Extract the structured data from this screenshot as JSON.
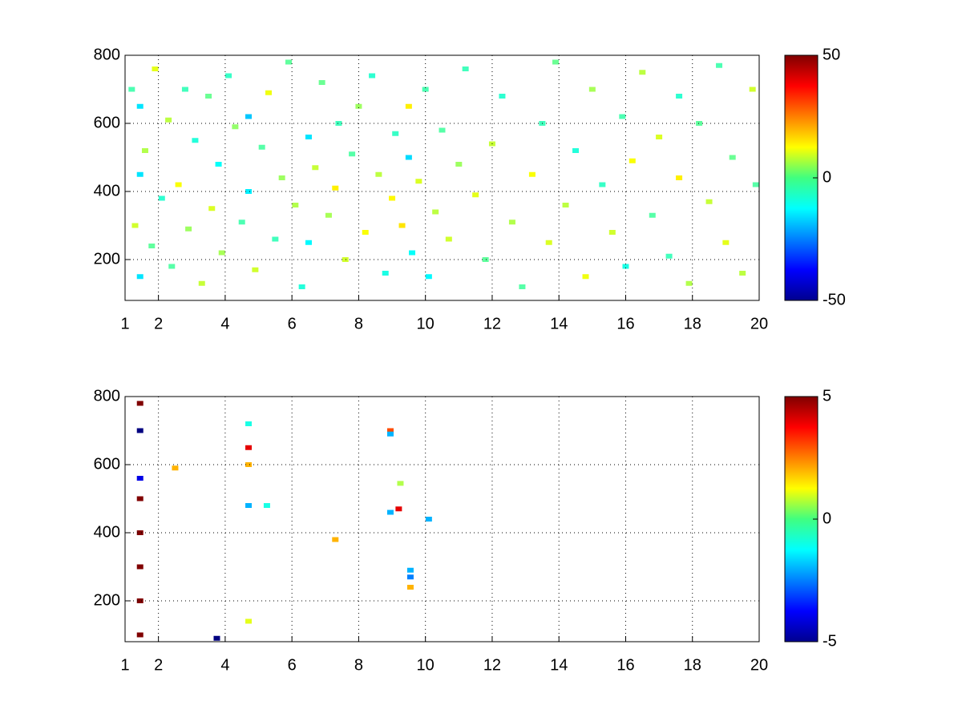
{
  "chart_data": [
    {
      "type": "heatmap",
      "colormap": "jet",
      "grid": true,
      "xlim": [
        1,
        20
      ],
      "xticks": [
        1,
        2,
        4,
        6,
        8,
        10,
        12,
        14,
        16,
        18,
        20
      ],
      "ylim": [
        80,
        800
      ],
      "yticks": [
        200,
        400,
        600,
        800
      ],
      "clim": [
        -50,
        50
      ],
      "cticks": [
        -50,
        0,
        50
      ],
      "x": [
        1.2,
        1.3,
        1.45,
        1.45,
        1.45,
        1.6,
        1.8,
        1.9,
        2.1,
        2.3,
        2.4,
        2.6,
        2.8,
        2.9,
        3.1,
        3.3,
        3.5,
        3.6,
        3.8,
        3.9,
        4.1,
        4.3,
        4.5,
        4.7,
        4.7,
        4.9,
        5.1,
        5.3,
        5.5,
        5.7,
        5.9,
        6.1,
        6.3,
        6.5,
        6.5,
        6.7,
        6.9,
        7.1,
        7.3,
        7.4,
        7.6,
        7.8,
        8.0,
        8.2,
        8.4,
        8.6,
        8.8,
        9.0,
        9.1,
        9.3,
        9.5,
        9.5,
        9.6,
        9.8,
        10.0,
        10.1,
        10.3,
        10.5,
        10.7,
        11.0,
        11.2,
        11.5,
        11.8,
        12.0,
        12.3,
        12.6,
        12.9,
        13.2,
        13.5,
        13.7,
        13.9,
        14.2,
        14.5,
        14.8,
        15.0,
        15.3,
        15.6,
        15.9,
        16.0,
        16.2,
        16.5,
        16.8,
        17.0,
        17.3,
        17.6,
        17.6,
        17.9,
        18.2,
        18.5,
        18.8,
        19.0,
        19.2,
        19.5,
        19.8,
        19.9
      ],
      "y": [
        700,
        300,
        150,
        450,
        650,
        520,
        240,
        760,
        380,
        610,
        180,
        420,
        700,
        290,
        550,
        130,
        680,
        350,
        480,
        220,
        740,
        590,
        310,
        620,
        400,
        170,
        530,
        690,
        260,
        440,
        780,
        360,
        120,
        560,
        250,
        470,
        720,
        330,
        410,
        600,
        200,
        510,
        650,
        280,
        740,
        450,
        160,
        380,
        570,
        300,
        500,
        650,
        220,
        430,
        700,
        150,
        340,
        580,
        260,
        480,
        760,
        390,
        200,
        540,
        680,
        310,
        120,
        450,
        600,
        250,
        780,
        360,
        520,
        150,
        700,
        420,
        280,
        620,
        180,
        490,
        750,
        330,
        560,
        210,
        440,
        680,
        130,
        600,
        370,
        770,
        250,
        500,
        160,
        700,
        420
      ],
      "values": [
        -5,
        8,
        -15,
        -15,
        -15,
        5,
        -3,
        10,
        -8,
        6,
        -4,
        12,
        -6,
        3,
        -9,
        7,
        -2,
        9,
        -12,
        4,
        -7,
        2,
        -5,
        -18,
        -14,
        8,
        -4,
        11,
        -6,
        3,
        -3,
        5,
        -9,
        -15,
        -13,
        7,
        -2,
        4,
        14,
        -6,
        8,
        -4,
        3,
        12,
        -8,
        6,
        -10,
        13,
        -7,
        15,
        -16,
        14,
        -12,
        9,
        -5,
        -13,
        6,
        -4,
        8,
        3,
        -6,
        10,
        -3,
        7,
        -8,
        5,
        -4,
        12,
        -6,
        9,
        -2,
        6,
        -9,
        11,
        4,
        -7,
        8,
        -5,
        -10,
        12,
        6,
        -4,
        9,
        -6,
        14,
        -8,
        5,
        -3,
        7,
        -5,
        10,
        -2,
        6,
        8,
        -4
      ]
    },
    {
      "type": "heatmap",
      "colormap": "jet",
      "grid": true,
      "xlim": [
        1,
        20
      ],
      "xticks": [
        1,
        2,
        4,
        6,
        8,
        10,
        12,
        14,
        16,
        18,
        20
      ],
      "ylim": [
        80,
        800
      ],
      "yticks": [
        200,
        400,
        600,
        800
      ],
      "clim": [
        -5,
        5
      ],
      "cticks": [
        -5,
        0,
        5
      ],
      "x": [
        1.45,
        1.45,
        1.45,
        1.45,
        1.45,
        1.45,
        1.45,
        1.45,
        2.5,
        3.75,
        4.7,
        4.7,
        4.7,
        4.7,
        4.7,
        5.25,
        7.3,
        8.95,
        8.95,
        8.95,
        9.2,
        9.25,
        9.55,
        9.55,
        9.55,
        10.1
      ],
      "y": [
        100,
        200,
        300,
        400,
        500,
        560,
        700,
        780,
        590,
        90,
        140,
        480,
        600,
        650,
        720,
        480,
        380,
        700,
        690,
        460,
        470,
        545,
        290,
        270,
        240,
        440
      ],
      "values": [
        5,
        5,
        5,
        5,
        5,
        -4,
        -5,
        5,
        2,
        -5,
        1,
        -2,
        2,
        4,
        -1,
        -1,
        2,
        3,
        -2,
        -2,
        4,
        0.5,
        -2,
        -2.5,
        2,
        -2
      ]
    }
  ]
}
